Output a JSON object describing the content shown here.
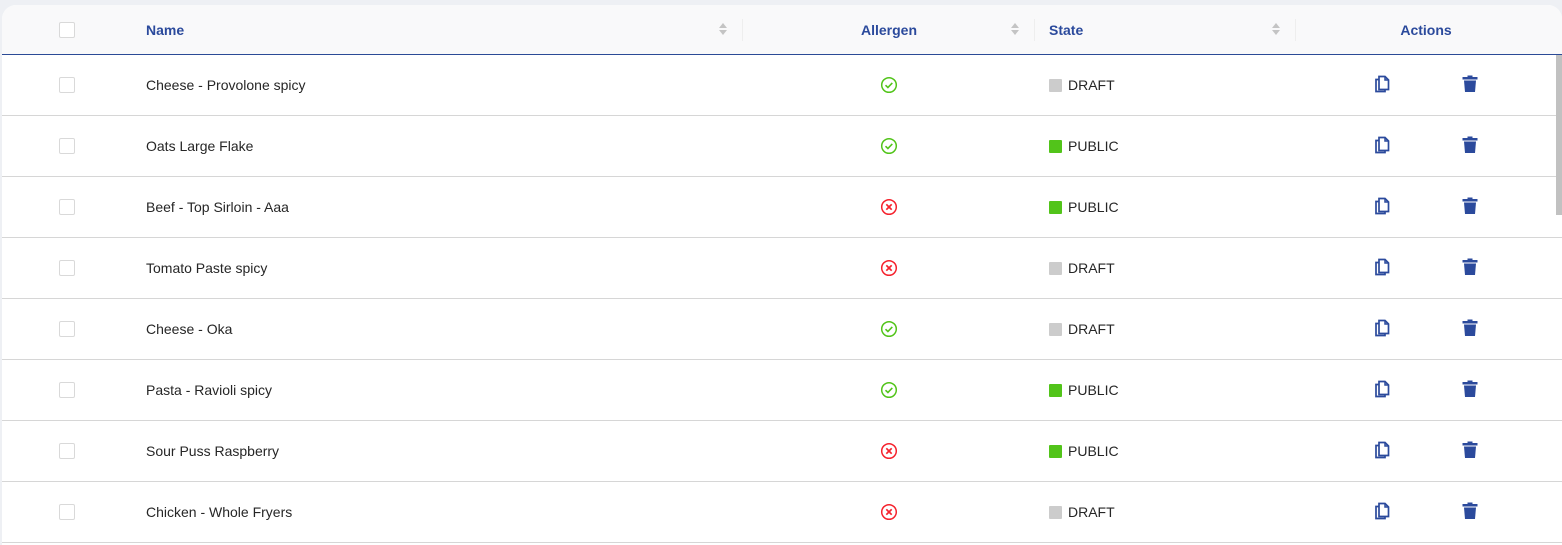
{
  "columns": {
    "name": "Name",
    "allergen": "Allergen",
    "state": "State",
    "actions": "Actions"
  },
  "colors": {
    "accent": "#2b4a9c",
    "allergen_yes": "#52c41a",
    "allergen_no": "#f5222d",
    "public": "#52c41a",
    "draft": "#cccccc"
  },
  "rows": [
    {
      "name": "Cheese - Provolone spicy",
      "allergen": true,
      "state": "DRAFT"
    },
    {
      "name": "Oats Large Flake",
      "allergen": true,
      "state": "PUBLIC"
    },
    {
      "name": "Beef - Top Sirloin - Aaa",
      "allergen": false,
      "state": "PUBLIC"
    },
    {
      "name": "Tomato Paste spicy",
      "allergen": false,
      "state": "DRAFT"
    },
    {
      "name": "Cheese - Oka",
      "allergen": true,
      "state": "DRAFT"
    },
    {
      "name": "Pasta - Ravioli spicy",
      "allergen": true,
      "state": "PUBLIC"
    },
    {
      "name": "Sour Puss Raspberry",
      "allergen": false,
      "state": "PUBLIC"
    },
    {
      "name": "Chicken - Whole Fryers",
      "allergen": false,
      "state": "DRAFT"
    }
  ]
}
